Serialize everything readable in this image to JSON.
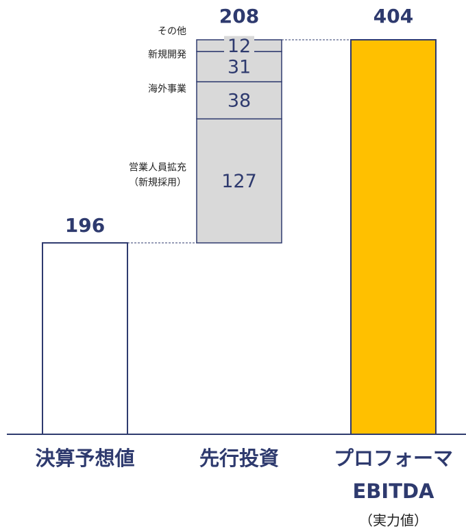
{
  "chart_data": {
    "type": "waterfall",
    "categories": [
      "決算予想値",
      "先行投資",
      [
        "プロフォーマ",
        "EBITDA"
      ]
    ],
    "subcategory": "（実力値）",
    "base": {
      "value": 196,
      "color": "#ffffff"
    },
    "segments": [
      {
        "name": [
          "営業人員拡充",
          "（新規採用）"
        ],
        "value": 127
      },
      {
        "name": [
          "海外事業"
        ],
        "value": 38
      },
      {
        "name": [
          "新規開発"
        ],
        "value": 31
      },
      {
        "name": [
          "その他"
        ],
        "value": 12
      }
    ],
    "segment_color": "#d9d9d9",
    "segments_total": 208,
    "result": {
      "value": 404,
      "color": "#ffc000"
    }
  }
}
